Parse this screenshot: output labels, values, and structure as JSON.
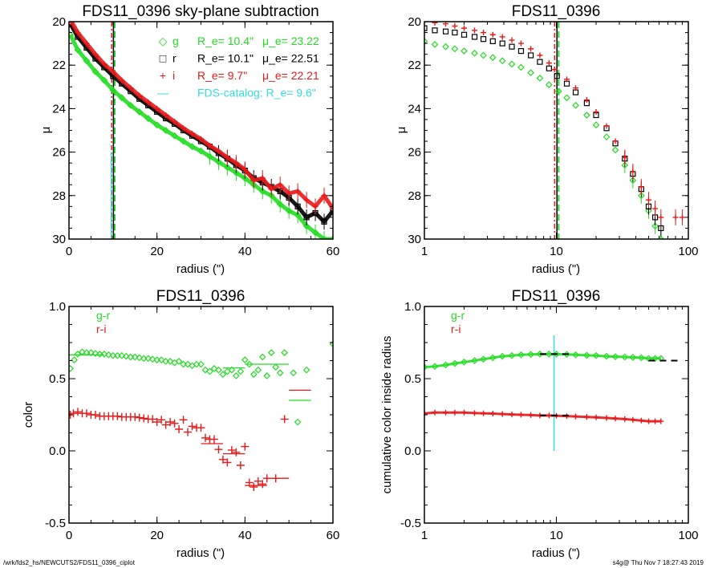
{
  "footer": {
    "left": "/wrk/fds2_hs/NEWCUTS2/FDS11_0396_ciplot",
    "right": "s4g@  Thu Nov  7 18:27:43 2019"
  },
  "colors": {
    "g": "#22dd22",
    "r": "#000000",
    "i": "#e8191a",
    "catalog": "#33dddd"
  },
  "chart_data": [
    {
      "id": "profile-linear",
      "type": "scatter",
      "title": "FDS11_0396 sky-plane subtraction",
      "xlabel": "radius (\")",
      "ylabel": "μ",
      "xlim": [
        0,
        60
      ],
      "ylim": [
        30,
        20
      ],
      "xscale": "linear",
      "xticks": [
        0,
        20,
        40,
        60
      ],
      "yticks": [
        20,
        22,
        24,
        26,
        28,
        30
      ],
      "legend": [
        {
          "symbol": "◇",
          "band": "g",
          "re_text": "R_e=  10.4\"",
          "mue_text": "μ_e= 23.22",
          "color": "#22dd22"
        },
        {
          "symbol": "□",
          "band": "r",
          "re_text": "R_e=  10.1\"",
          "mue_text": "μ_e= 22.51",
          "color": "#000000"
        },
        {
          "symbol": "+",
          "band": "i",
          "re_text": "R_e=   9.7\"",
          "mue_text": "μ_e= 22.21",
          "color": "#e8191a"
        },
        {
          "symbol": "—",
          "band": "",
          "re_text": "FDS-catalog: R_e=   9.6\"",
          "mue_text": "",
          "color": "#33dddd"
        }
      ],
      "legend_position": "top-right",
      "vlines": [
        {
          "x": 10.4,
          "style": "dashed",
          "color": "#22dd22"
        },
        {
          "x": 10.1,
          "style": "solid",
          "color": "#000000"
        },
        {
          "x": 9.7,
          "style": "dashdot",
          "color": "#e8191a"
        },
        {
          "x": 9.6,
          "style": "solid",
          "color": "#33dddd",
          "ymin": 26,
          "ymax": 30
        }
      ],
      "series": [
        {
          "name": "g",
          "marker": "diamond",
          "color": "#22dd22",
          "x": [
            0.3,
            2,
            4,
            6,
            8,
            10,
            12,
            14,
            16,
            18,
            20,
            22,
            24,
            26,
            28,
            30,
            32,
            34,
            36,
            38,
            40,
            42,
            44,
            46,
            48,
            50,
            52,
            54,
            56,
            58,
            60
          ],
          "y": [
            20.6,
            21.3,
            21.8,
            22.3,
            22.7,
            23.15,
            23.5,
            23.85,
            24.15,
            24.45,
            24.75,
            25.0,
            25.25,
            25.5,
            25.75,
            25.95,
            26.2,
            26.45,
            26.7,
            26.95,
            27.2,
            27.5,
            27.8,
            28.0,
            28.4,
            28.7,
            28.9,
            29.4,
            29.7,
            30.0,
            30.0
          ]
        },
        {
          "name": "r",
          "marker": "square",
          "color": "#000000",
          "x": [
            0.3,
            2,
            4,
            6,
            8,
            10,
            12,
            14,
            16,
            18,
            20,
            22,
            24,
            26,
            28,
            30,
            32,
            34,
            36,
            38,
            40,
            42,
            44,
            46,
            48,
            50,
            52,
            54,
            56,
            58,
            60
          ],
          "y": [
            20.1,
            20.7,
            21.2,
            21.7,
            22.1,
            22.5,
            22.85,
            23.2,
            23.55,
            23.85,
            24.15,
            24.45,
            24.7,
            25.0,
            25.25,
            25.5,
            25.75,
            26.05,
            26.3,
            26.6,
            26.85,
            27.2,
            27.4,
            27.6,
            27.8,
            28.1,
            28.5,
            29.0,
            28.8,
            29.2,
            28.7
          ]
        },
        {
          "name": "i",
          "marker": "plus",
          "color": "#e8191a",
          "x": [
            0.3,
            2,
            4,
            6,
            8,
            10,
            12,
            14,
            16,
            18,
            20,
            22,
            24,
            26,
            28,
            30,
            32,
            34,
            36,
            38,
            40,
            42,
            44,
            46,
            48,
            50,
            52,
            54,
            56,
            58,
            60
          ],
          "y": [
            19.9,
            20.5,
            21.0,
            21.5,
            21.95,
            22.3,
            22.7,
            23.05,
            23.4,
            23.7,
            24.0,
            24.3,
            24.6,
            24.9,
            25.15,
            25.4,
            25.7,
            25.95,
            26.25,
            26.5,
            26.8,
            27.3,
            27.2,
            27.7,
            27.5,
            27.9,
            27.8,
            28.2,
            28.5,
            28.0,
            28.6
          ]
        }
      ]
    },
    {
      "id": "profile-log",
      "type": "scatter",
      "title": "FDS11_0396",
      "xlabel": "radius (\")",
      "ylabel": "μ",
      "xlim": [
        1,
        100
      ],
      "ylim": [
        30,
        20
      ],
      "xscale": "log",
      "xticks": [
        1,
        10,
        100
      ],
      "yticks": [
        20,
        22,
        24,
        26,
        28,
        30
      ],
      "vlines": [
        {
          "x": 10.4,
          "style": "dashed",
          "color": "#22dd22"
        },
        {
          "x": 10.1,
          "style": "solid",
          "color": "#000000"
        },
        {
          "x": 9.7,
          "style": "dashdot",
          "color": "#e8191a"
        }
      ],
      "series": [
        {
          "name": "g",
          "marker": "diamond",
          "color": "#22dd22",
          "x": [
            1.0,
            1.2,
            1.45,
            1.7,
            2.0,
            2.4,
            2.8,
            3.3,
            3.9,
            4.6,
            5.4,
            6.4,
            7.5,
            8.8,
            10.4,
            12,
            14,
            17,
            20,
            24,
            28,
            33,
            38,
            44,
            50,
            56,
            62
          ],
          "y": [
            20.9,
            21.05,
            21.15,
            21.25,
            21.35,
            21.45,
            21.55,
            21.65,
            21.8,
            21.95,
            22.1,
            22.35,
            22.6,
            22.9,
            23.2,
            23.5,
            23.85,
            24.3,
            24.75,
            25.3,
            25.9,
            26.6,
            27.3,
            28.0,
            28.7,
            29.4,
            30.0
          ]
        },
        {
          "name": "r",
          "marker": "square",
          "color": "#000000",
          "x": [
            1.0,
            1.2,
            1.45,
            1.7,
            2.0,
            2.4,
            2.8,
            3.3,
            3.9,
            4.6,
            5.4,
            6.4,
            7.5,
            8.8,
            10.1,
            12,
            14,
            17,
            20,
            24,
            28,
            33,
            38,
            44,
            50,
            56,
            62
          ],
          "y": [
            20.3,
            20.4,
            20.45,
            20.5,
            20.6,
            20.7,
            20.8,
            20.9,
            21.0,
            21.15,
            21.35,
            21.55,
            21.85,
            22.15,
            22.5,
            22.85,
            23.25,
            23.75,
            24.3,
            24.9,
            25.6,
            26.3,
            27.0,
            27.7,
            28.5,
            29.0,
            29.5
          ]
        },
        {
          "name": "i",
          "marker": "plus",
          "color": "#e8191a",
          "x": [
            1.0,
            1.2,
            1.45,
            1.7,
            2.0,
            2.4,
            2.8,
            3.3,
            3.9,
            4.6,
            5.4,
            6.4,
            7.5,
            8.8,
            9.7,
            12,
            14,
            17,
            20,
            24,
            28,
            33,
            38,
            44,
            50,
            56,
            62,
            80,
            90
          ],
          "y": [
            20.0,
            20.05,
            20.1,
            20.2,
            20.3,
            20.4,
            20.5,
            20.6,
            20.7,
            20.85,
            21.0,
            21.25,
            21.55,
            21.9,
            22.2,
            22.65,
            23.05,
            23.6,
            24.15,
            24.8,
            25.5,
            26.25,
            26.9,
            27.6,
            28.2,
            28.6,
            29.0,
            29.0,
            29.0
          ]
        }
      ]
    },
    {
      "id": "color-profile",
      "type": "scatter",
      "title": "FDS11_0396",
      "xlabel": "radius (\")",
      "ylabel": "color",
      "xlim": [
        0,
        60
      ],
      "ylim": [
        -0.5,
        1.0
      ],
      "xscale": "linear",
      "xticks": [
        0,
        20,
        40,
        60
      ],
      "yticks": [
        -0.5,
        0.0,
        0.5,
        1.0
      ],
      "ytick_labels": [
        "-0.5",
        "0.0",
        "0.5",
        "1.0"
      ],
      "legend": [
        {
          "label": "g-r",
          "color": "#22dd22"
        },
        {
          "label": "r-i",
          "color": "#e8191a"
        }
      ],
      "legend_position": "top-left",
      "series": [
        {
          "name": "g-r",
          "marker": "diamond",
          "color": "#22dd22",
          "x": [
            0.3,
            1.2,
            2,
            3,
            4,
            5,
            6,
            7,
            8,
            9,
            10,
            11,
            12,
            13,
            14,
            15,
            16,
            17,
            18,
            19,
            20,
            21,
            22,
            23,
            24,
            25,
            26,
            27,
            28,
            29,
            30,
            31,
            32,
            33,
            34,
            35,
            36,
            37,
            38,
            39,
            40,
            41,
            42,
            43,
            44,
            45,
            46,
            47,
            48,
            49,
            51,
            52,
            54,
            60
          ],
          "y": [
            0.57,
            0.63,
            0.67,
            0.685,
            0.68,
            0.68,
            0.675,
            0.67,
            0.67,
            0.665,
            0.66,
            0.66,
            0.66,
            0.655,
            0.65,
            0.65,
            0.645,
            0.64,
            0.64,
            0.635,
            0.63,
            0.63,
            0.62,
            0.62,
            0.61,
            0.62,
            0.6,
            0.6,
            0.59,
            0.6,
            0.6,
            0.56,
            0.55,
            0.57,
            0.56,
            0.53,
            0.55,
            0.56,
            0.52,
            0.55,
            0.63,
            0.6,
            0.53,
            0.56,
            0.65,
            0.52,
            0.68,
            0.58,
            0.54,
            0.68,
            0.54,
            0.2,
            0.56,
            0.74
          ]
        },
        {
          "name": "r-i",
          "marker": "plus",
          "color": "#e8191a",
          "x": [
            0.3,
            1,
            2,
            3,
            4,
            5,
            6,
            7,
            8,
            9,
            10,
            11,
            12,
            13,
            14,
            15,
            16,
            17,
            18,
            19,
            20,
            21,
            22,
            23,
            24,
            25,
            26,
            27,
            28,
            29,
            30,
            31,
            32,
            33,
            34,
            35,
            36,
            37,
            38,
            39,
            40,
            41,
            42,
            43,
            44,
            45,
            47,
            49
          ],
          "y": [
            0.25,
            0.26,
            0.27,
            0.26,
            0.26,
            0.25,
            0.25,
            0.24,
            0.24,
            0.24,
            0.24,
            0.24,
            0.235,
            0.235,
            0.235,
            0.235,
            0.23,
            0.225,
            0.22,
            0.22,
            0.2,
            0.215,
            0.18,
            0.2,
            0.19,
            0.15,
            0.215,
            0.13,
            0.17,
            0.16,
            0.16,
            0.09,
            0.08,
            0.08,
            0.01,
            -0.06,
            -0.08,
            0.005,
            -0.01,
            -0.1,
            0.03,
            -0.22,
            -0.25,
            -0.21,
            -0.23,
            -0.19,
            -0.19,
            0.22
          ]
        }
      ],
      "bin_lines": [
        {
          "series": "g-r",
          "x0": 0,
          "x1": 8,
          "y": 0.665
        },
        {
          "series": "g-r",
          "x0": 35,
          "x1": 40,
          "y": 0.575
        },
        {
          "series": "g-r",
          "x0": 40,
          "x1": 50,
          "y": 0.6
        },
        {
          "series": "g-r",
          "x0": 50,
          "x1": 55,
          "y": 0.35
        },
        {
          "series": "r-i",
          "x0": 30,
          "x1": 35,
          "y": 0.05
        },
        {
          "series": "r-i",
          "x0": 35,
          "x1": 40,
          "y": -0.02
        },
        {
          "series": "r-i",
          "x0": 40,
          "x1": 45,
          "y": -0.24
        },
        {
          "series": "r-i",
          "x0": 45,
          "x1": 50,
          "y": -0.19
        },
        {
          "series": "r-i",
          "x0": 50,
          "x1": 55,
          "y": 0.42
        }
      ]
    },
    {
      "id": "cumulative-color",
      "type": "scatter",
      "title": "FDS11_0396",
      "xlabel": "radius (\")",
      "ylabel": "cumulative color inside radius",
      "xlim": [
        1,
        100
      ],
      "ylim": [
        -0.5,
        1.0
      ],
      "xscale": "log",
      "xticks": [
        1,
        10,
        100
      ],
      "yticks": [
        -0.5,
        0.0,
        0.5,
        1.0
      ],
      "ytick_labels": [
        "-0.5",
        "0.0",
        "0.5",
        "1.0"
      ],
      "legend": [
        {
          "label": "g-r",
          "color": "#22dd22"
        },
        {
          "label": "r-i",
          "color": "#e8191a"
        }
      ],
      "legend_position": "top-left",
      "vlines": [
        {
          "x": 9.6,
          "style": "solid",
          "color": "#33dddd",
          "ymin": 0.0,
          "ymax": 0.8
        }
      ],
      "series": [
        {
          "name": "g-r",
          "marker": "diamond",
          "color": "#22dd22",
          "x": [
            1.0,
            1.2,
            1.45,
            1.7,
            2.0,
            2.4,
            2.8,
            3.3,
            3.9,
            4.6,
            5.4,
            6.4,
            7.5,
            8.8,
            10,
            12,
            14,
            17,
            20,
            24,
            28,
            33,
            38,
            44,
            50,
            56,
            62
          ],
          "y": [
            0.58,
            0.585,
            0.595,
            0.605,
            0.615,
            0.625,
            0.635,
            0.645,
            0.655,
            0.66,
            0.665,
            0.668,
            0.67,
            0.67,
            0.67,
            0.668,
            0.665,
            0.662,
            0.66,
            0.655,
            0.652,
            0.65,
            0.648,
            0.645,
            0.64,
            0.64,
            0.64
          ]
        },
        {
          "name": "r-i",
          "marker": "plus",
          "color": "#e8191a",
          "x": [
            1.0,
            1.2,
            1.45,
            1.7,
            2.0,
            2.4,
            2.8,
            3.3,
            3.9,
            4.6,
            5.4,
            6.4,
            7.5,
            8.8,
            10,
            12,
            14,
            17,
            20,
            24,
            28,
            33,
            38,
            44,
            50,
            56,
            62
          ],
          "y": [
            0.26,
            0.265,
            0.265,
            0.265,
            0.265,
            0.262,
            0.26,
            0.258,
            0.255,
            0.252,
            0.25,
            0.248,
            0.245,
            0.245,
            0.243,
            0.24,
            0.238,
            0.235,
            0.232,
            0.228,
            0.224,
            0.22,
            0.215,
            0.21,
            0.205,
            0.205,
            0.205
          ]
        }
      ],
      "ref_lines": [
        {
          "x0": 7.5,
          "x1": 13,
          "y": 0.67,
          "color": "#000000",
          "style": "dashed"
        },
        {
          "x0": 7.5,
          "x1": 13,
          "y": 0.245,
          "color": "#000000",
          "style": "dashed"
        },
        {
          "x0": 50,
          "x1": 90,
          "y": 0.625,
          "color": "#000000",
          "style": "dashed"
        }
      ]
    }
  ]
}
